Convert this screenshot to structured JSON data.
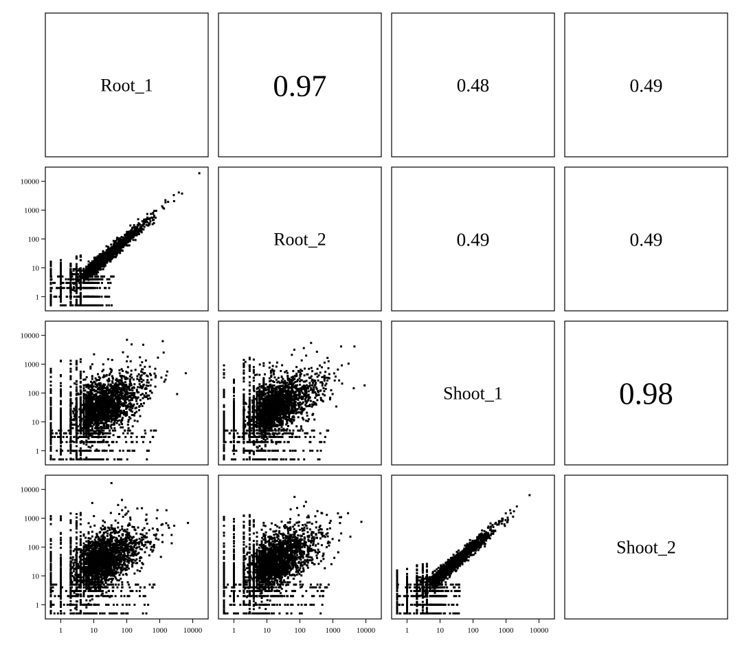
{
  "chart_data": {
    "type": "scatter",
    "layout": "scatterplot-matrix",
    "title": "",
    "variables": [
      "Root_1",
      "Root_2",
      "Shoot_1",
      "Shoot_2"
    ],
    "scale": "log10",
    "axis_ticks": [
      1,
      10,
      100,
      1000,
      10000
    ],
    "axis_tick_labels": [
      "1",
      "10",
      "100",
      "1000",
      "10000"
    ],
    "axis_range": [
      0.5,
      20000
    ],
    "correlations": [
      {
        "row": "Root_1",
        "col": "Root_2",
        "value": 0.97,
        "label": "0.97"
      },
      {
        "row": "Root_1",
        "col": "Shoot_1",
        "value": 0.48,
        "label": "0.48"
      },
      {
        "row": "Root_1",
        "col": "Shoot_2",
        "value": 0.49,
        "label": "0.49"
      },
      {
        "row": "Root_2",
        "col": "Shoot_1",
        "value": 0.49,
        "label": "0.49"
      },
      {
        "row": "Root_2",
        "col": "Shoot_2",
        "value": 0.49,
        "label": "0.49"
      },
      {
        "row": "Shoot_1",
        "col": "Shoot_2",
        "value": 0.98,
        "label": "0.98"
      }
    ],
    "scatter_pairs": [
      {
        "x": "Root_1",
        "y": "Root_2",
        "relationship": "strong",
        "seed": 11
      },
      {
        "x": "Root_1",
        "y": "Shoot_1",
        "relationship": "weak",
        "seed": 23
      },
      {
        "x": "Root_2",
        "y": "Shoot_1",
        "relationship": "weak",
        "seed": 37
      },
      {
        "x": "Root_1",
        "y": "Shoot_2",
        "relationship": "weak",
        "seed": 41
      },
      {
        "x": "Root_2",
        "y": "Shoot_2",
        "relationship": "weak",
        "seed": 53
      },
      {
        "x": "Shoot_1",
        "y": "Shoot_2",
        "relationship": "strong",
        "seed": 67
      }
    ],
    "grid": false,
    "legend": "none"
  }
}
